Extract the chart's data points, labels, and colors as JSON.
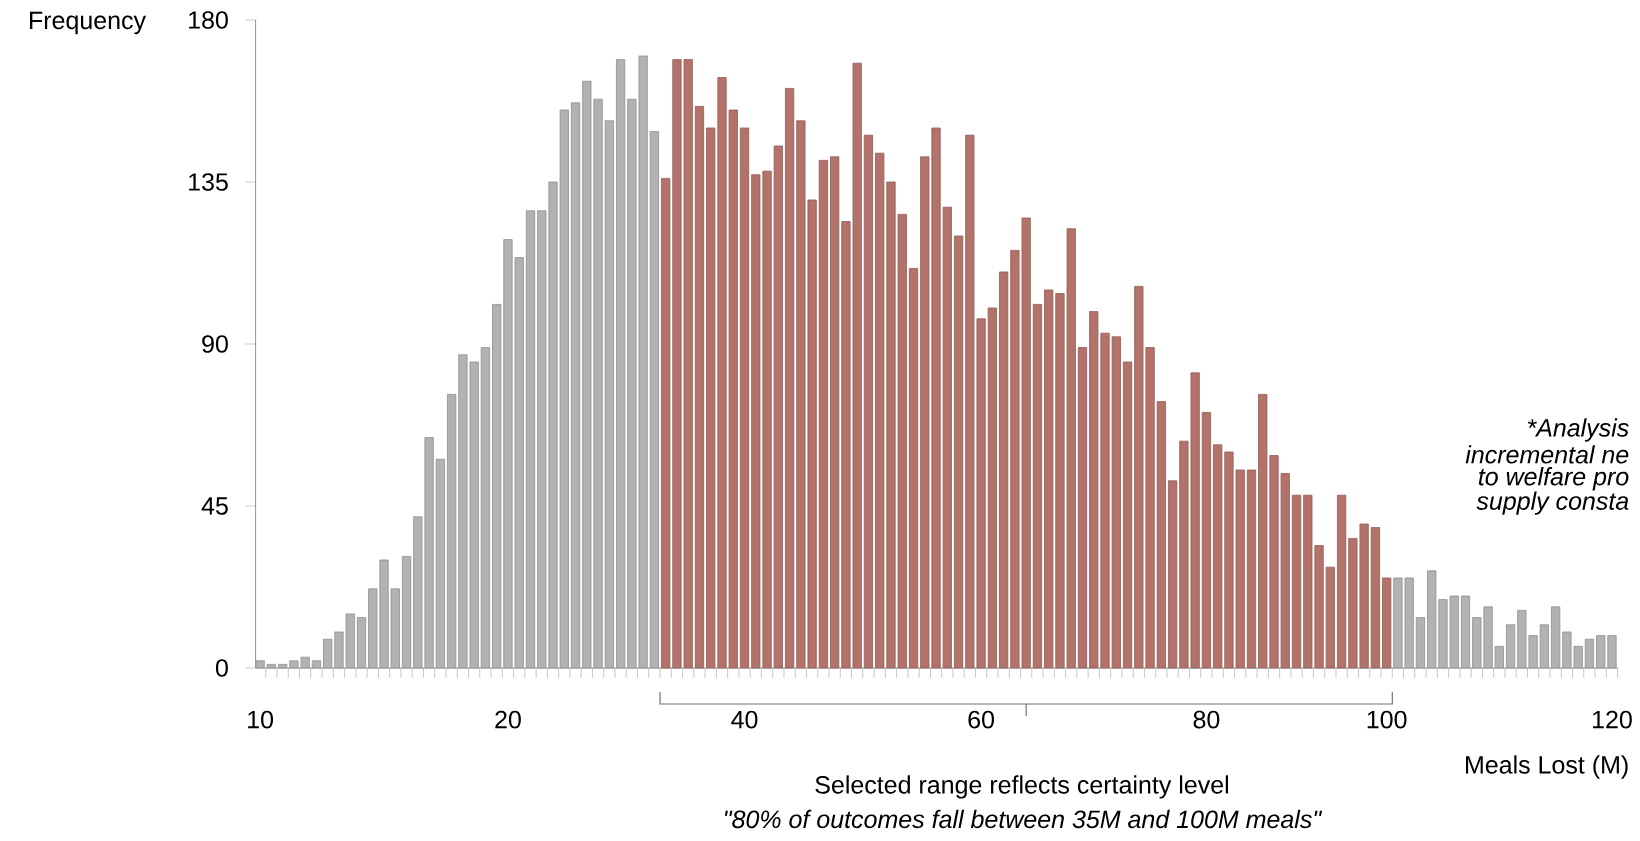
{
  "chart_data": {
    "type": "bar",
    "xlabel": "Meals Lost (M)",
    "ylabel": "Frequency",
    "categories": [
      "10",
      null,
      null,
      null,
      null,
      null,
      null,
      null,
      null,
      null,
      null,
      null,
      null,
      null,
      null,
      null,
      null,
      null,
      null,
      null,
      null,
      null,
      "20",
      null,
      null,
      null,
      null,
      null,
      null,
      null,
      null,
      null,
      null,
      null,
      null,
      null,
      null,
      null,
      null,
      null,
      null,
      null,
      null,
      "40",
      null,
      null,
      null,
      null,
      null,
      null,
      null,
      null,
      null,
      null,
      null,
      null,
      null,
      null,
      null,
      null,
      null,
      null,
      null,
      null,
      "60",
      null,
      null,
      null,
      null,
      null,
      null,
      null,
      null,
      null,
      null,
      null,
      null,
      null,
      null,
      null,
      null,
      null,
      null,
      null,
      "80",
      null,
      null,
      null,
      null,
      null,
      null,
      null,
      null,
      null,
      null,
      null,
      null,
      null,
      null,
      null,
      "100",
      null,
      null,
      null,
      null,
      null,
      null,
      null,
      null,
      null,
      null,
      null,
      null,
      null,
      null,
      null,
      null,
      null,
      null,
      null,
      "120"
    ],
    "values": [
      2,
      1,
      1,
      2,
      3,
      2,
      8,
      10,
      15,
      14,
      22,
      30,
      22,
      31,
      42,
      64,
      58,
      76,
      87,
      85,
      89,
      101,
      119,
      114,
      127,
      127,
      135,
      155,
      157,
      163,
      158,
      152,
      169,
      158,
      170,
      149,
      136,
      169,
      169,
      156,
      150,
      164,
      155,
      150,
      137,
      138,
      145,
      161,
      152,
      130,
      141,
      142,
      124,
      168,
      148,
      143,
      135,
      126,
      111,
      142,
      150,
      128,
      120,
      148,
      97,
      100,
      110,
      116,
      125,
      101,
      105,
      104,
      122,
      89,
      99,
      93,
      92,
      85,
      106,
      89,
      74,
      52,
      63,
      82,
      71,
      62,
      60,
      55,
      55,
      76,
      59,
      54,
      48,
      48,
      34,
      28,
      48,
      36,
      40,
      39,
      25,
      25,
      25,
      14,
      27,
      19,
      20,
      20,
      14,
      17,
      6,
      12,
      16,
      9,
      12,
      17,
      10,
      6,
      8,
      9,
      9
    ],
    "colors": [
      "#b2b2b2",
      "#b2b2b2",
      "#b2b2b2",
      "#b2b2b2",
      "#b2b2b2",
      "#b2b2b2",
      "#b2b2b2",
      "#b2b2b2",
      "#b2b2b2",
      "#b2b2b2",
      "#b2b2b2",
      "#b2b2b2",
      "#b2b2b2",
      "#b2b2b2",
      "#b2b2b2",
      "#b2b2b2",
      "#b2b2b2",
      "#b2b2b2",
      "#b2b2b2",
      "#b2b2b2",
      "#b2b2b2",
      "#b2b2b2",
      "#b2b2b2",
      "#b2b2b2",
      "#b2b2b2",
      "#b2b2b2",
      "#b2b2b2",
      "#b2b2b2",
      "#b2b2b2",
      "#b2b2b2",
      "#b2b2b2",
      "#b2b2b2",
      "#b2b2b2",
      "#b2b2b2",
      "#b2b2b2",
      "#b2b2b2",
      "#b3736a",
      "#b3736a",
      "#b3736a",
      "#b3736a",
      "#b3736a",
      "#b3736a",
      "#b3736a",
      "#b3736a",
      "#b3736a",
      "#b3736a",
      "#b3736a",
      "#b3736a",
      "#b3736a",
      "#b3736a",
      "#b3736a",
      "#b3736a",
      "#b3736a",
      "#b3736a",
      "#b3736a",
      "#b3736a",
      "#b3736a",
      "#b3736a",
      "#b3736a",
      "#b3736a",
      "#b3736a",
      "#b3736a",
      "#b3736a",
      "#b3736a",
      "#b3736a",
      "#b3736a",
      "#b3736a",
      "#b3736a",
      "#b3736a",
      "#b3736a",
      "#b3736a",
      "#b3736a",
      "#b3736a",
      "#b3736a",
      "#b3736a",
      "#b3736a",
      "#b3736a",
      "#b3736a",
      "#b3736a",
      "#b3736a",
      "#b3736a",
      "#b3736a",
      "#b3736a",
      "#b3736a",
      "#b3736a",
      "#b3736a",
      "#b3736a",
      "#b3736a",
      "#b3736a",
      "#b3736a",
      "#b3736a",
      "#b3736a",
      "#b3736a",
      "#b3736a",
      "#b3736a",
      "#b3736a",
      "#b3736a",
      "#b3736a",
      "#b3736a",
      "#b3736a",
      "#b3736a",
      "#b2b2b2",
      "#b2b2b2",
      "#b2b2b2",
      "#b2b2b2",
      "#b2b2b2",
      "#b2b2b2",
      "#b2b2b2",
      "#b2b2b2",
      "#b2b2b2",
      "#b2b2b2",
      "#b2b2b2",
      "#b2b2b2",
      "#b2b2b2",
      "#b2b2b2",
      "#b2b2b2",
      "#b2b2b2",
      "#b2b2b2",
      "#b2b2b2",
      "#b2b2b2",
      "#b2b2b2"
    ],
    "ylim": [
      0,
      180
    ],
    "yticks": [
      0,
      45,
      90,
      135,
      180
    ],
    "grid": false,
    "annotations": [
      "Selected range reflects certainty level",
      "\"80% of outcomes fall between 35M and 100M meals\"",
      "*Analysis",
      "incremental ne",
      "to welfare pro",
      "supply consta"
    ]
  }
}
